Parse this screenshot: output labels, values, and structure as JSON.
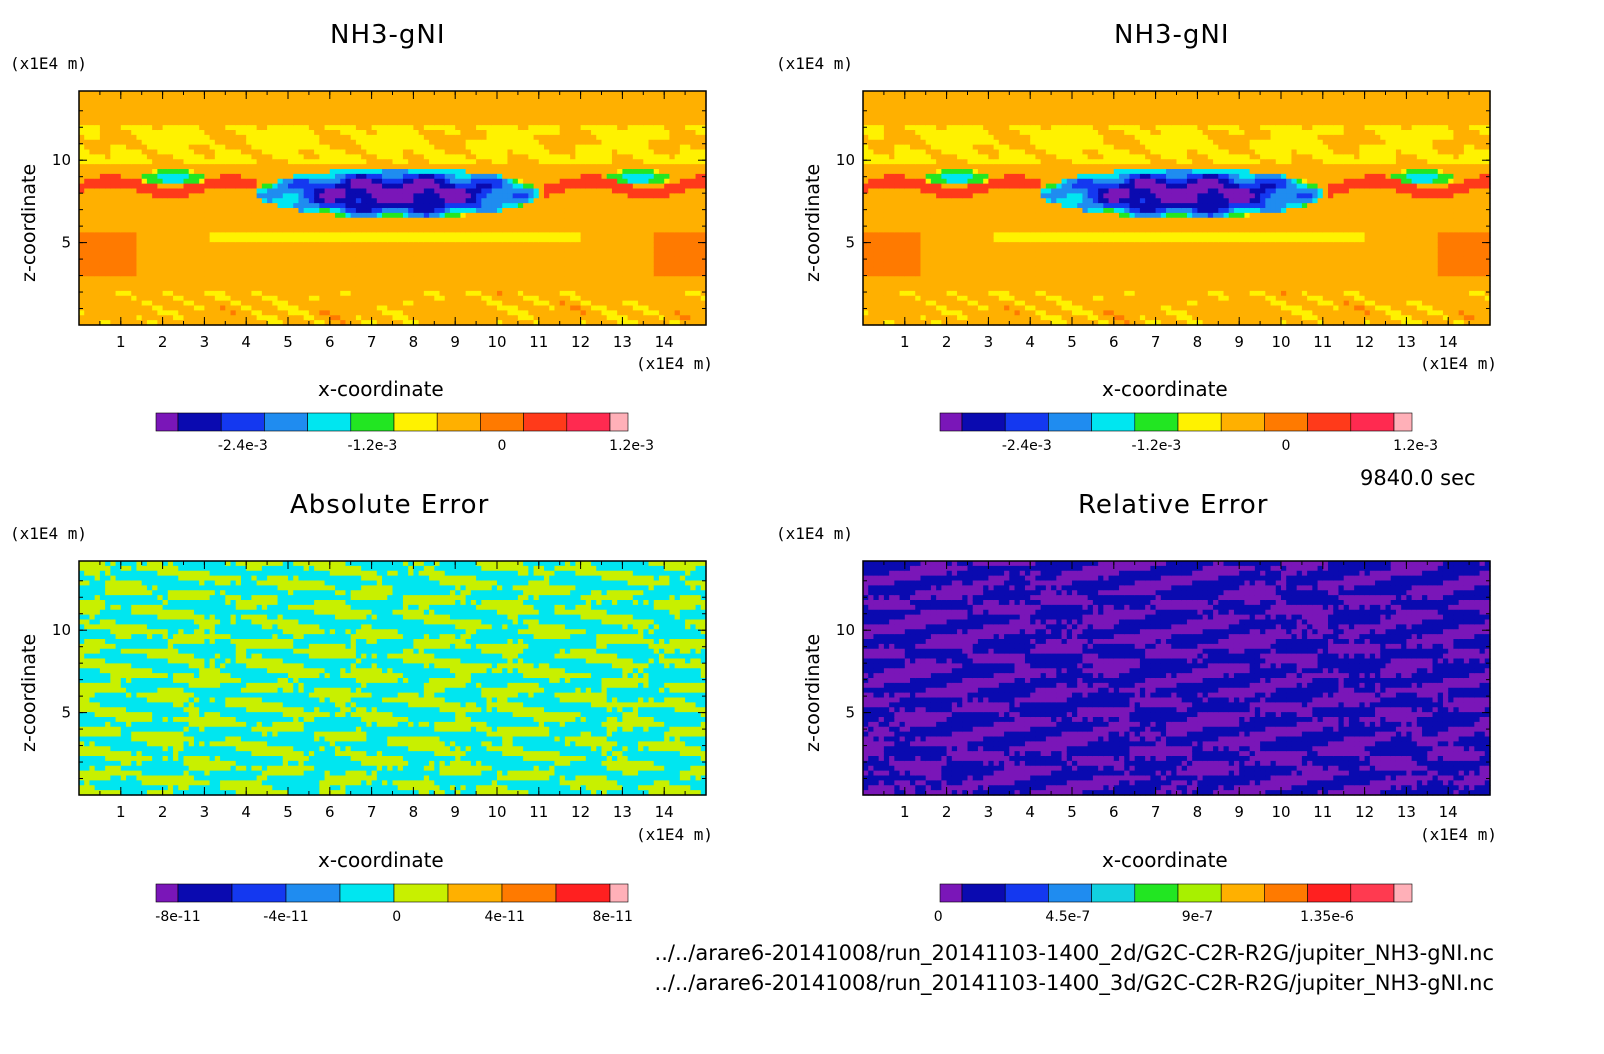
{
  "time_label": "9840.0 sec",
  "file_paths": [
    "../../arare6-20141008/run_20141103-1400_2d/G2C-C2R-R2G/jupiter_NH3-gNI.nc",
    "../../arare6-20141008/run_20141103-1400_3d/G2C-C2R-R2G/jupiter_NH3-gNI.nc"
  ],
  "colors": {
    "field_palette": [
      "#7a16b8",
      "#0a0ab0",
      "#1438f0",
      "#1f8cf0",
      "#00e6f0",
      "#22e622",
      "#fff200",
      "#ffb000",
      "#ff7a00",
      "#ff3a1a",
      "#ff2a50",
      "#ffb0b8"
    ],
    "absolute_palette": [
      "#7a16b8",
      "#0a0ab0",
      "#1438f0",
      "#1f8cf0",
      "#00e6f0",
      "#c8f000",
      "#ffb000",
      "#ff7a00",
      "#ff2020",
      "#ffb0b8"
    ],
    "relative_palette": [
      "#7a16b8",
      "#0a0ab0",
      "#1438f0",
      "#1f8cf0",
      "#12d0e0",
      "#22e622",
      "#a8f000",
      "#ffb000",
      "#ff7a00",
      "#ff2020",
      "#ff3a50",
      "#ffb0b8"
    ]
  },
  "chart_data": [
    {
      "type": "heatmap",
      "title": "NH3-gNI",
      "xlabel": "x-coordinate",
      "ylabel": "z-coordinate",
      "x_unit": "(x1E4 m)",
      "z_unit": "(x1E4 m)",
      "xlim": [
        0,
        15
      ],
      "zlim": [
        0,
        15
      ],
      "x_ticks": [
        "1",
        "2",
        "3",
        "4",
        "5",
        "6",
        "7",
        "8",
        "9",
        "10",
        "11",
        "12",
        "13",
        "14"
      ],
      "z_ticks": [
        "5",
        "10"
      ],
      "colorbar_ticks": [
        "-2.4e-3",
        "-1.2e-3",
        "0",
        "1.2e-3"
      ],
      "colorbar_levels": [
        -0.003,
        -0.0027,
        -0.0024,
        -0.0021,
        -0.0018,
        -0.0015,
        -0.0012,
        -0.0009,
        -0.0006,
        -0.0003,
        0,
        0.0003,
        0.0006,
        0.0009,
        0.0012,
        0.0015
      ],
      "description_field": "mostly near 0 (yellow/orange), negative anomaly cloud at z 6-10 between x 4 and 11"
    },
    {
      "type": "heatmap",
      "title": "NH3-gNI",
      "xlabel": "x-coordinate",
      "ylabel": "z-coordinate",
      "x_unit": "(x1E4 m)",
      "z_unit": "(x1E4 m)",
      "xlim": [
        0,
        15
      ],
      "zlim": [
        0,
        15
      ],
      "x_ticks": [
        "1",
        "2",
        "3",
        "4",
        "5",
        "6",
        "7",
        "8",
        "9",
        "10",
        "11",
        "12",
        "13",
        "14"
      ],
      "z_ticks": [
        "5",
        "10"
      ],
      "colorbar_ticks": [
        "-2.4e-3",
        "-1.2e-3",
        "0",
        "1.2e-3"
      ]
    },
    {
      "type": "heatmap",
      "title": "Absolute Error",
      "xlabel": "x-coordinate",
      "ylabel": "z-coordinate",
      "x_unit": "(x1E4 m)",
      "z_unit": "(x1E4 m)",
      "xlim": [
        0,
        15
      ],
      "zlim": [
        0,
        15
      ],
      "x_ticks": [
        "1",
        "2",
        "3",
        "4",
        "5",
        "6",
        "7",
        "8",
        "9",
        "10",
        "11",
        "12",
        "13",
        "14"
      ],
      "z_ticks": [
        "5",
        "10"
      ],
      "colorbar_ticks": [
        "-8e-11",
        "-4e-11",
        "0",
        "4e-11",
        "8e-11"
      ],
      "dominant_values": [
        0,
        2e-11
      ]
    },
    {
      "type": "heatmap",
      "title": "Relative Error",
      "xlabel": "x-coordinate",
      "ylabel": "z-coordinate",
      "x_unit": "(x1E4 m)",
      "z_unit": "(x1E4 m)",
      "xlim": [
        0,
        15
      ],
      "zlim": [
        0,
        15
      ],
      "x_ticks": [
        "1",
        "2",
        "3",
        "4",
        "5",
        "6",
        "7",
        "8",
        "9",
        "10",
        "11",
        "12",
        "13",
        "14"
      ],
      "z_ticks": [
        "5",
        "10"
      ],
      "colorbar_ticks": [
        "0",
        "4.5e-7",
        "9e-7",
        "1.35e-6"
      ],
      "dominant_values": [
        0,
        1.5e-07
      ]
    }
  ]
}
